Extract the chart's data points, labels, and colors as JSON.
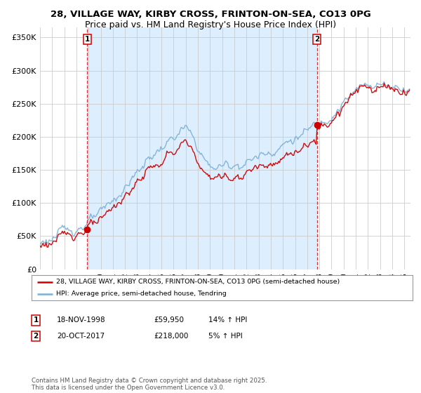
{
  "title_line1": "28, VILLAGE WAY, KIRBY CROSS, FRINTON-ON-SEA, CO13 0PG",
  "title_line2": "Price paid vs. HM Land Registry's House Price Index (HPI)",
  "ylabel_ticks": [
    "£0",
    "£50K",
    "£100K",
    "£150K",
    "£200K",
    "£250K",
    "£300K",
    "£350K"
  ],
  "ytick_values": [
    0,
    50000,
    100000,
    150000,
    200000,
    250000,
    300000,
    350000
  ],
  "ylim": [
    0,
    365000
  ],
  "xlim_start": 1995.0,
  "xlim_end": 2025.5,
  "purchase1_year": 1998.88,
  "purchase1_value": 59950,
  "purchase1_label": "1",
  "purchase2_year": 2017.8,
  "purchase2_value": 218000,
  "purchase2_label": "2",
  "red_color": "#cc0000",
  "blue_color": "#7bafd4",
  "fill_color": "#ddeeff",
  "background_color": "#ffffff",
  "grid_color": "#cccccc",
  "legend_line1": "28, VILLAGE WAY, KIRBY CROSS, FRINTON-ON-SEA, CO13 0PG (semi-detached house)",
  "legend_line2": "HPI: Average price, semi-detached house, Tendring",
  "table_row1": [
    "1",
    "18-NOV-1998",
    "£59,950",
    "14% ↑ HPI"
  ],
  "table_row2": [
    "2",
    "20-OCT-2017",
    "£218,000",
    "5% ↑ HPI"
  ],
  "footer": "Contains HM Land Registry data © Crown copyright and database right 2025.\nThis data is licensed under the Open Government Licence v3.0.",
  "title_fontsize": 9.5,
  "tick_fontsize": 8
}
